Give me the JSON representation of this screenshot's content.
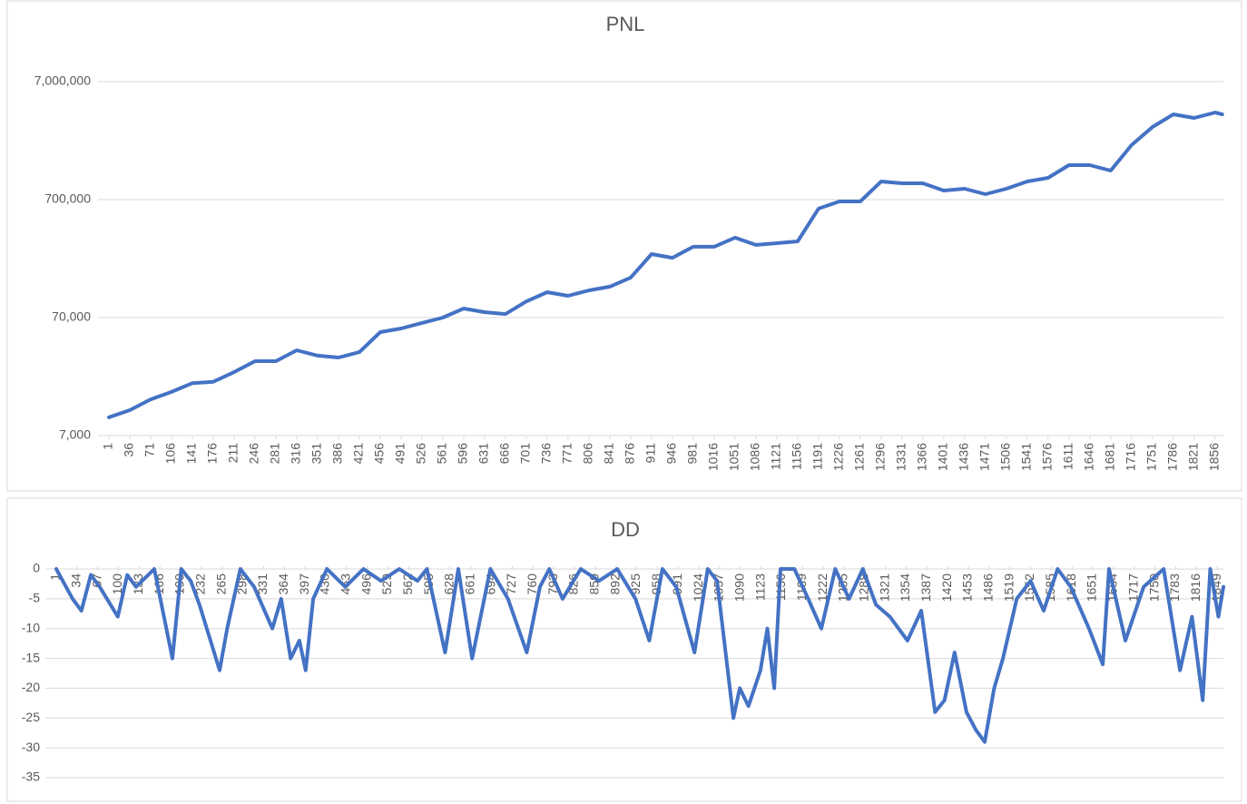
{
  "chart_data": [
    {
      "type": "line",
      "title": "PNL",
      "color": "#4472c4",
      "log_scale": true,
      "grid": true,
      "x": [
        1,
        36,
        71,
        106,
        141,
        176,
        211,
        246,
        281,
        316,
        351,
        386,
        421,
        456,
        491,
        526,
        561,
        596,
        631,
        666,
        701,
        736,
        771,
        806,
        841,
        876,
        911,
        946,
        981,
        1016,
        1051,
        1086,
        1121,
        1156,
        1191,
        1226,
        1261,
        1296,
        1331,
        1366,
        1401,
        1436,
        1471,
        1506,
        1541,
        1576,
        1611,
        1646,
        1681,
        1716,
        1751,
        1786,
        1821,
        1856,
        1868
      ],
      "values": [
        10000,
        11500,
        14200,
        16400,
        19500,
        20000,
        24200,
        29900,
        29900,
        37000,
        33300,
        32100,
        35700,
        52700,
        56600,
        63000,
        70000,
        83500,
        77800,
        75000,
        96000,
        115000,
        107000,
        119000,
        128000,
        153000,
        242000,
        225000,
        279000,
        279000,
        333000,
        289000,
        299000,
        310000,
        587000,
        676000,
        676000,
        998000,
        962000,
        962000,
        835000,
        866000,
        778000,
        866000,
        998000,
        1071000,
        1372000,
        1372000,
        1233000,
        2028000,
        2886000,
        3700000,
        3445000,
        3830000,
        3700000
      ],
      "xlim": [
        1,
        1870
      ],
      "xticks": [
        1,
        36,
        71,
        106,
        141,
        176,
        211,
        246,
        281,
        316,
        351,
        386,
        421,
        456,
        491,
        526,
        561,
        596,
        631,
        666,
        701,
        736,
        771,
        806,
        841,
        876,
        911,
        946,
        981,
        1016,
        1051,
        1086,
        1121,
        1156,
        1191,
        1226,
        1261,
        1296,
        1331,
        1366,
        1401,
        1436,
        1471,
        1506,
        1541,
        1576,
        1611,
        1646,
        1681,
        1716,
        1751,
        1786,
        1821,
        1856
      ],
      "ylim": [
        7000,
        7000000
      ],
      "yticks": [
        {
          "value": 7000,
          "label": "7,000"
        },
        {
          "value": 70000,
          "label": "70,000"
        },
        {
          "value": 700000,
          "label": "700,000"
        },
        {
          "value": 7000000,
          "label": "7,000,000"
        }
      ]
    },
    {
      "type": "line",
      "title": "DD",
      "color": "#4472c4",
      "log_scale": false,
      "grid": true,
      "x": [
        1,
        27,
        41,
        56,
        70,
        99,
        114,
        128,
        157,
        186,
        200,
        215,
        229,
        261,
        273,
        294,
        316,
        345,
        359,
        374,
        388,
        398,
        410,
        432,
        461,
        490,
        518,
        547,
        576,
        591,
        620,
        641,
        663,
        692,
        720,
        750,
        771,
        786,
        807,
        836,
        865,
        894,
        923,
        945,
        966,
        988,
        1017,
        1038,
        1053,
        1079,
        1089,
        1103,
        1122,
        1133,
        1144,
        1154,
        1176,
        1198,
        1219,
        1241,
        1263,
        1285,
        1306,
        1328,
        1356,
        1378,
        1400,
        1415,
        1431,
        1450,
        1465,
        1479,
        1494,
        1508,
        1530,
        1552,
        1573,
        1595,
        1616,
        1645,
        1667,
        1677,
        1703,
        1732,
        1764,
        1790,
        1809,
        1826,
        1838,
        1851,
        1859
      ],
      "values": [
        0,
        -5,
        -7,
        -1,
        -3,
        -8,
        -1,
        -3,
        0,
        -15,
        0,
        -2,
        -6,
        -17,
        -10,
        0,
        -3,
        -10,
        -5,
        -15,
        -12,
        -17,
        -5,
        0,
        -3,
        0,
        -2,
        0,
        -2,
        0,
        -14,
        0,
        -15,
        0,
        -5,
        -14,
        -3,
        0,
        -5,
        0,
        -2,
        0,
        -5,
        -12,
        0,
        -3,
        -14,
        0,
        -2,
        -25,
        -20,
        -23,
        -17,
        -10,
        -20,
        0,
        0,
        -5,
        -10,
        0,
        -5,
        0,
        -6,
        -8,
        -12,
        -7,
        -24,
        -22,
        -14,
        -24,
        -27,
        -29,
        -20,
        -15,
        -5,
        -2,
        -7,
        0,
        -3,
        -10,
        -16,
        0,
        -12,
        -3,
        0,
        -17,
        -8,
        -22,
        0,
        -8,
        -3
      ],
      "xlim": [
        1,
        1859
      ],
      "xticks": [
        1,
        34,
        67,
        100,
        133,
        166,
        199,
        232,
        265,
        298,
        331,
        364,
        397,
        430,
        463,
        496,
        529,
        562,
        595,
        628,
        661,
        694,
        727,
        760,
        793,
        826,
        859,
        892,
        925,
        958,
        991,
        1024,
        1057,
        1090,
        1123,
        1156,
        1189,
        1222,
        1255,
        1288,
        1321,
        1354,
        1387,
        1420,
        1453,
        1486,
        1519,
        1552,
        1585,
        1618,
        1651,
        1684,
        1717,
        1750,
        1783,
        1816,
        1849
      ],
      "ylim": [
        -35,
        0
      ],
      "yticks": [
        0,
        -5,
        -10,
        -15,
        -20,
        -25,
        -30,
        -35
      ]
    }
  ]
}
